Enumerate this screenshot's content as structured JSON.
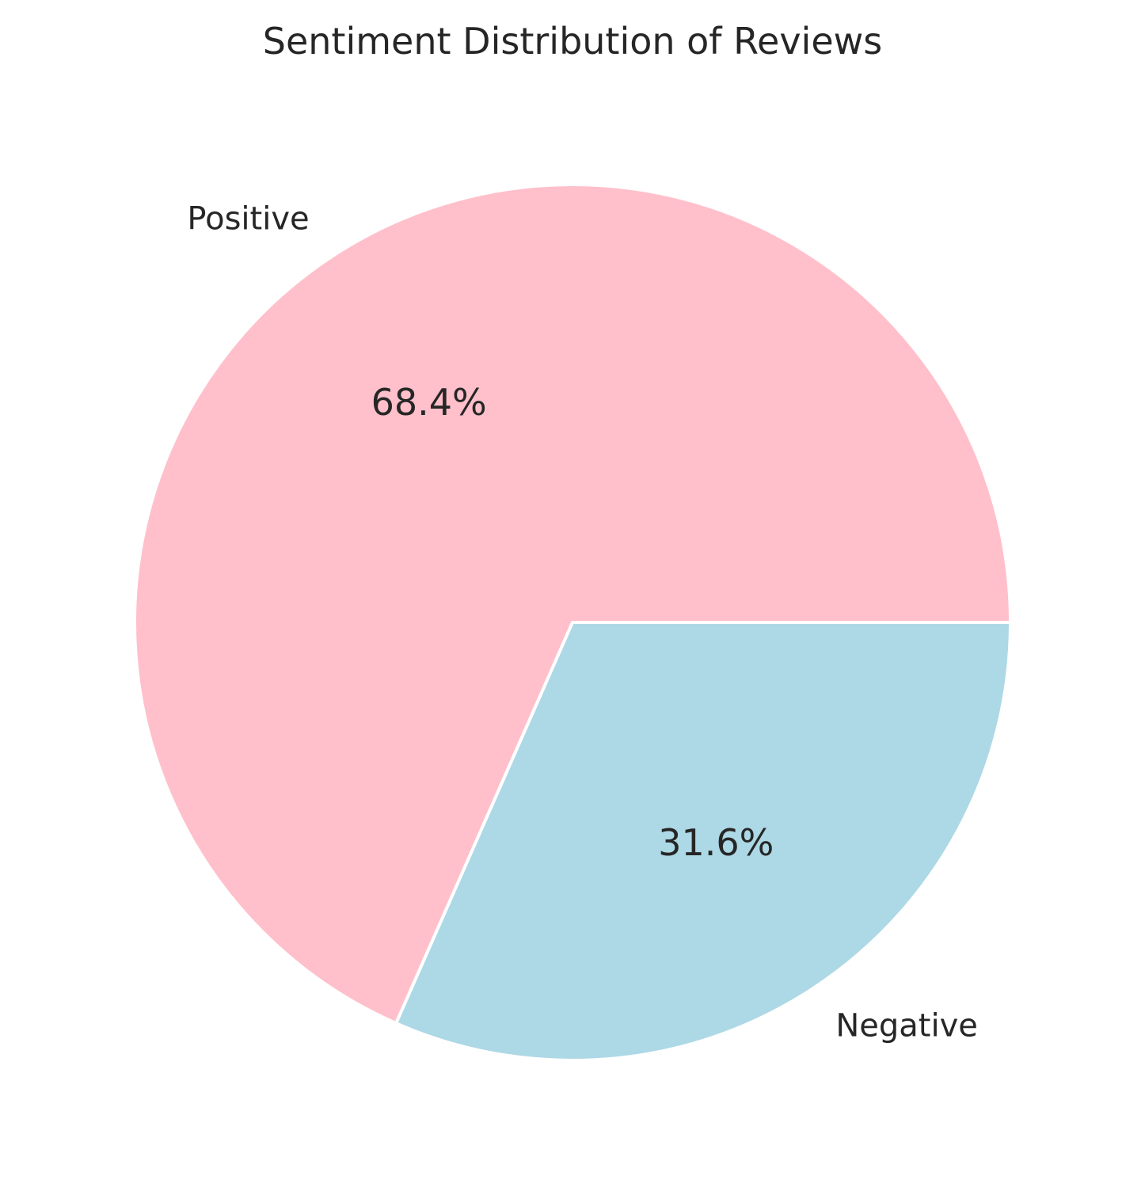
{
  "chart_data": {
    "type": "pie",
    "title": "Sentiment Distribution of Reviews",
    "categories": [
      "Positive",
      "Negative"
    ],
    "values": [
      68.4,
      31.6
    ],
    "value_labels": [
      "68.4%",
      "31.6%"
    ],
    "colors": [
      "#ffc0cb",
      "#add8e6"
    ],
    "start_angle_deg": 0,
    "direction": "counterclockwise",
    "wedge_edge_color": "#ffffff",
    "legend": "none",
    "grid": false
  }
}
